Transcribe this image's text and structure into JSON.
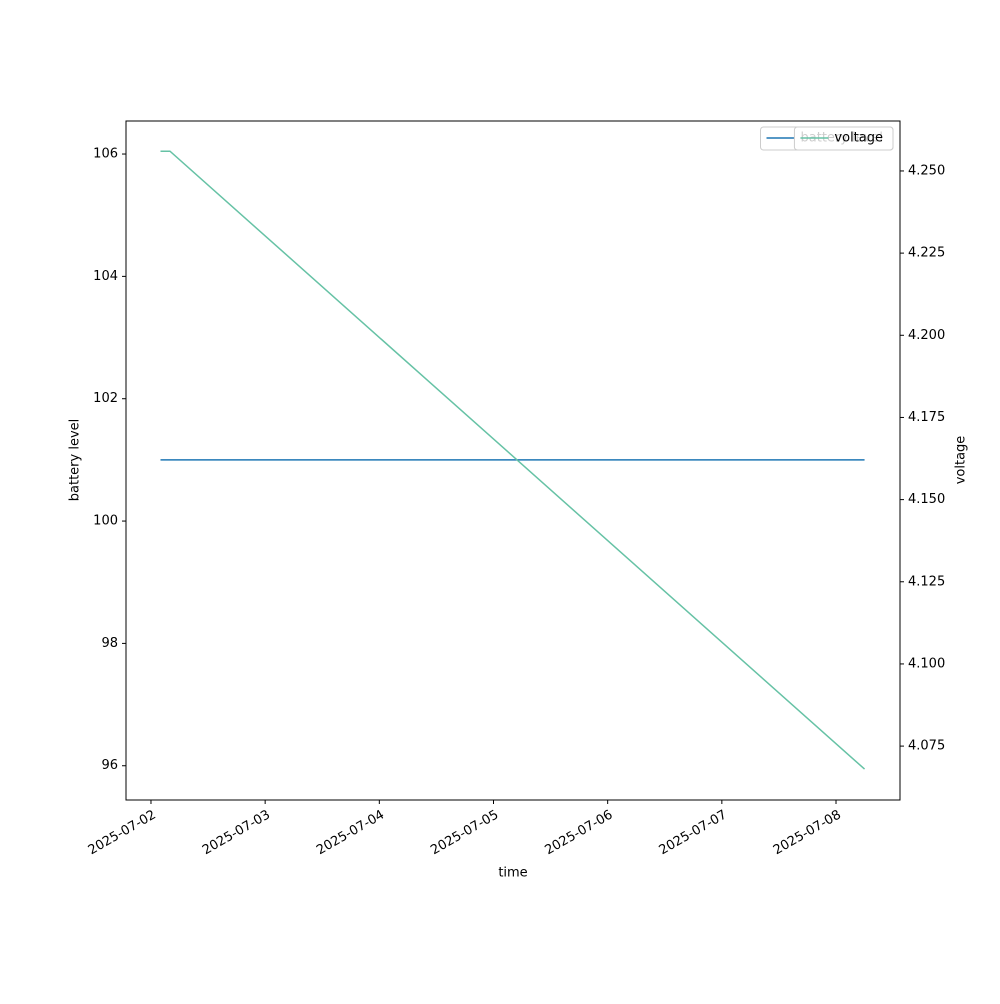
{
  "chart_data": {
    "type": "line",
    "xlabel": "time",
    "ylabel": "battery level",
    "y2label": "voltage",
    "x": [
      "2025-07-02T02:00",
      "2025-07-02T04:00",
      "2025-07-08T06:00"
    ],
    "series": [
      {
        "name": "battery level",
        "color": "#1f77b4",
        "values": [
          101,
          101,
          101
        ]
      },
      {
        "name": "voltage",
        "color": "#66c2a5",
        "axis": "y2",
        "values": [
          4.256,
          4.256,
          4.068
        ]
      }
    ],
    "xlim": [
      "2025-07-01T18:45",
      "2025-07-08T13:27"
    ],
    "xticks": [
      "2025-07-02",
      "2025-07-03",
      "2025-07-04",
      "2025-07-05",
      "2025-07-06",
      "2025-07-07",
      "2025-07-08"
    ],
    "ylim": [
      95.44,
      106.54
    ],
    "yticks": [
      96,
      98,
      100,
      102,
      104,
      106
    ],
    "y2lim": [
      4.0586,
      4.2652
    ],
    "y2ticks": [
      {
        "value": 4.075,
        "label": "4.075"
      },
      {
        "value": 4.1,
        "label": "4.100"
      },
      {
        "value": 4.125,
        "label": "4.125"
      },
      {
        "value": 4.15,
        "label": "4.150"
      },
      {
        "value": 4.175,
        "label": "4.175"
      },
      {
        "value": 4.2,
        "label": "4.200"
      },
      {
        "value": 4.225,
        "label": "4.225"
      },
      {
        "value": 4.25,
        "label": "4.250"
      }
    ],
    "legend": "upper right",
    "grid": false
  }
}
